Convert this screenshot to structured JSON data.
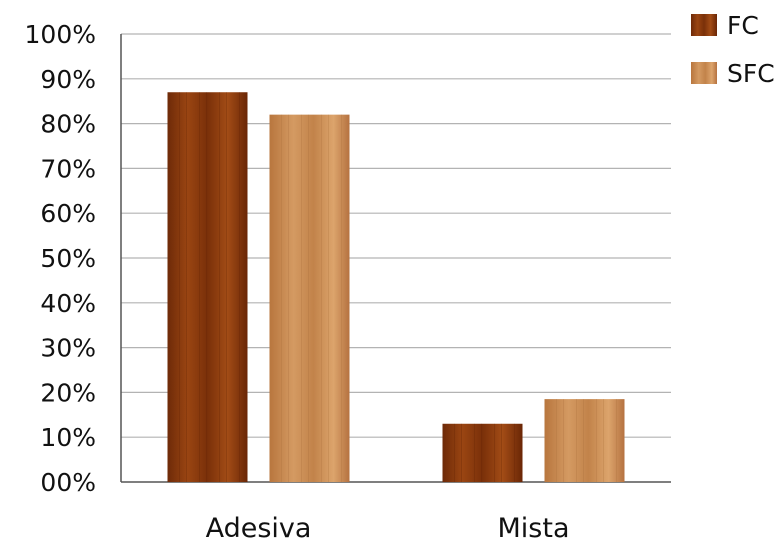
{
  "chart_data": {
    "type": "bar",
    "categories": [
      "Adesiva",
      "Mista"
    ],
    "series": [
      {
        "name": "FC",
        "values": [
          87,
          13
        ],
        "color": "#8a3a0e"
      },
      {
        "name": "SFC",
        "values": [
          82,
          18.5
        ],
        "color": "#c98a52"
      }
    ],
    "y_ticks": [
      "00%",
      "10%",
      "20%",
      "30%",
      "40%",
      "50%",
      "60%",
      "70%",
      "80%",
      "90%",
      "100%"
    ],
    "ylim": [
      0,
      100
    ],
    "y_unit": "%",
    "grid": true,
    "legend_position": "top-right"
  }
}
